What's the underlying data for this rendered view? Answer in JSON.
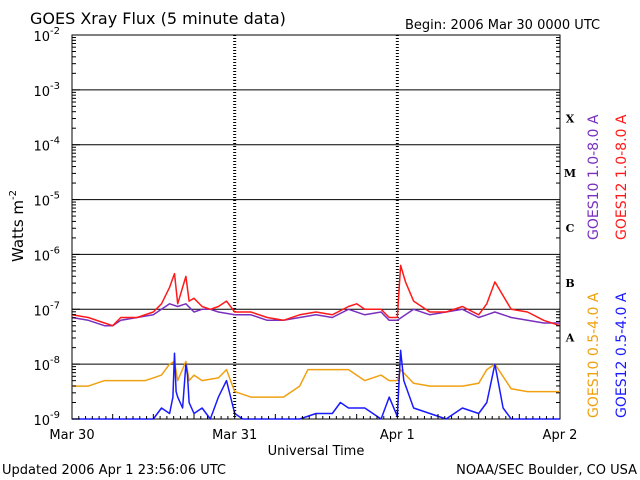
{
  "chart_data": {
    "type": "line",
    "title": "GOES Xray Flux (5 minute data)",
    "begin_label": "Begin:  2006 Mar 30 0000 UTC",
    "updated_label": "Updated 2006 Apr  1 23:56:06 UTC",
    "credit_label": "NOAA/SEC Boulder, CO USA",
    "xlabel": "Universal Time",
    "ylabel_main": "Watts m",
    "ylabel_exp": "-2",
    "yscale": "log",
    "ylim_exp": [
      -9,
      -2
    ],
    "y_ticks": [
      {
        "base": "10",
        "exp": "-2"
      },
      {
        "base": "10",
        "exp": "-3"
      },
      {
        "base": "10",
        "exp": "-4"
      },
      {
        "base": "10",
        "exp": "-5"
      },
      {
        "base": "10",
        "exp": "-6"
      },
      {
        "base": "10",
        "exp": "-7"
      },
      {
        "base": "10",
        "exp": "-8"
      },
      {
        "base": "10",
        "exp": "-9"
      }
    ],
    "x_range_days": [
      0,
      3
    ],
    "x_ticks": [
      {
        "label": "Mar 30",
        "day": 0
      },
      {
        "label": "Mar 31",
        "day": 1
      },
      {
        "label": "Apr 1",
        "day": 2
      },
      {
        "label": "Apr 2",
        "day": 3
      }
    ],
    "flare_classes": [
      {
        "label": "X",
        "exp": -3.5
      },
      {
        "label": "M",
        "exp": -4.5
      },
      {
        "label": "C",
        "exp": -5.5
      },
      {
        "label": "B",
        "exp": -6.5
      },
      {
        "label": "A",
        "exp": -7.5
      }
    ],
    "legend": [
      {
        "label": "GOES10 1.0-8.0 A",
        "color": "#7a2fbf"
      },
      {
        "label": "GOES12 1.0-8.0 A",
        "color": "#ff1a1a"
      },
      {
        "label": "GOES10 0.5-4.0 A",
        "color": "#f0a010"
      },
      {
        "label": "GOES12 0.5-4.0 A",
        "color": "#1a1aff"
      }
    ],
    "series": [
      {
        "name": "GOES10 1.0-8.0 A",
        "color": "#7a2fbf",
        "x_day": [
          0,
          0.1,
          0.2,
          0.25,
          0.3,
          0.4,
          0.5,
          0.6,
          0.65,
          0.7,
          0.75,
          0.8,
          0.85,
          0.9,
          1.0,
          1.1,
          1.2,
          1.3,
          1.4,
          1.5,
          1.6,
          1.7,
          1.8,
          1.9,
          1.95,
          2.0,
          2.1,
          2.2,
          2.3,
          2.4,
          2.5,
          2.55,
          2.6,
          2.7,
          2.8,
          2.9,
          3.0
        ],
        "log10_y": [
          -7.15,
          -7.2,
          -7.3,
          -7.3,
          -7.2,
          -7.15,
          -7.1,
          -6.9,
          -6.95,
          -6.9,
          -7.05,
          -7.0,
          -7.0,
          -7.05,
          -7.1,
          -7.1,
          -7.2,
          -7.2,
          -7.15,
          -7.1,
          -7.15,
          -7.0,
          -7.1,
          -7.05,
          -7.2,
          -7.2,
          -7.0,
          -7.1,
          -7.05,
          -7.0,
          -7.15,
          -7.1,
          -7.05,
          -7.15,
          -7.2,
          -7.25,
          -7.25
        ]
      },
      {
        "name": "GOES12 1.0-8.0 A",
        "color": "#ff1a1a",
        "x_day": [
          0,
          0.1,
          0.2,
          0.25,
          0.3,
          0.4,
          0.5,
          0.55,
          0.6,
          0.63,
          0.65,
          0.7,
          0.72,
          0.75,
          0.8,
          0.85,
          0.9,
          0.95,
          1.0,
          1.1,
          1.2,
          1.3,
          1.4,
          1.5,
          1.6,
          1.7,
          1.75,
          1.8,
          1.9,
          1.95,
          2.0,
          2.02,
          2.05,
          2.1,
          2.2,
          2.3,
          2.4,
          2.5,
          2.55,
          2.6,
          2.7,
          2.8,
          2.9,
          3.0
        ],
        "log10_y": [
          -7.1,
          -7.15,
          -7.25,
          -7.3,
          -7.15,
          -7.15,
          -7.05,
          -6.9,
          -6.6,
          -6.35,
          -6.9,
          -6.4,
          -6.85,
          -6.8,
          -6.95,
          -7.0,
          -6.95,
          -6.85,
          -7.05,
          -7.05,
          -7.15,
          -7.2,
          -7.1,
          -7.05,
          -7.1,
          -6.95,
          -6.9,
          -7.0,
          -7.0,
          -7.15,
          -7.15,
          -6.2,
          -6.5,
          -6.85,
          -7.05,
          -7.05,
          -6.95,
          -7.1,
          -6.9,
          -6.5,
          -7.0,
          -7.05,
          -7.2,
          -7.3
        ]
      },
      {
        "name": "GOES10 0.5-4.0 A",
        "color": "#f0a010",
        "x_day": [
          0,
          0.1,
          0.2,
          0.3,
          0.4,
          0.45,
          0.5,
          0.55,
          0.6,
          0.63,
          0.65,
          0.7,
          0.72,
          0.75,
          0.8,
          0.9,
          0.95,
          1.0,
          1.1,
          1.2,
          1.3,
          1.4,
          1.45,
          1.5,
          1.6,
          1.7,
          1.8,
          1.9,
          1.95,
          2.0,
          2.02,
          2.1,
          2.2,
          2.3,
          2.4,
          2.5,
          2.55,
          2.6,
          2.7,
          2.8,
          2.9,
          3.0
        ],
        "log10_y": [
          -8.4,
          -8.4,
          -8.3,
          -8.3,
          -8.3,
          -8.3,
          -8.25,
          -8.2,
          -8.0,
          -7.95,
          -8.3,
          -7.95,
          -8.3,
          -8.2,
          -8.3,
          -8.25,
          -8.1,
          -8.5,
          -8.6,
          -8.6,
          -8.6,
          -8.4,
          -8.1,
          -8.1,
          -8.1,
          -8.1,
          -8.3,
          -8.2,
          -8.3,
          -8.3,
          -8.1,
          -8.35,
          -8.4,
          -8.4,
          -8.4,
          -8.35,
          -8.1,
          -8.0,
          -8.45,
          -8.5,
          -8.5,
          -8.5
        ]
      },
      {
        "name": "GOES12 0.5-4.0 A",
        "color": "#1a1aff",
        "x_day": [
          0,
          0.1,
          0.2,
          0.3,
          0.4,
          0.5,
          0.55,
          0.6,
          0.62,
          0.63,
          0.64,
          0.65,
          0.68,
          0.7,
          0.71,
          0.72,
          0.75,
          0.8,
          0.85,
          0.9,
          0.95,
          1.0,
          1.05,
          1.2,
          1.4,
          1.5,
          1.6,
          1.65,
          1.7,
          1.8,
          1.9,
          1.95,
          2.0,
          2.02,
          2.04,
          2.1,
          2.2,
          2.3,
          2.4,
          2.5,
          2.55,
          2.6,
          2.65,
          2.7,
          2.8,
          2.9,
          3.0
        ],
        "log10_y": [
          -9,
          -9,
          -9,
          -9,
          -9,
          -9,
          -8.8,
          -8.9,
          -8.6,
          -7.8,
          -8.5,
          -8.6,
          -8.8,
          -8.0,
          -8.2,
          -8.7,
          -8.9,
          -8.8,
          -9,
          -8.6,
          -8.3,
          -8.9,
          -9,
          -9,
          -9,
          -8.9,
          -8.9,
          -8.7,
          -8.8,
          -8.8,
          -9,
          -8.6,
          -8.95,
          -7.75,
          -8.3,
          -8.8,
          -8.9,
          -9,
          -8.8,
          -8.9,
          -8.7,
          -8.0,
          -8.8,
          -9,
          -9,
          -9,
          -9
        ]
      }
    ]
  }
}
